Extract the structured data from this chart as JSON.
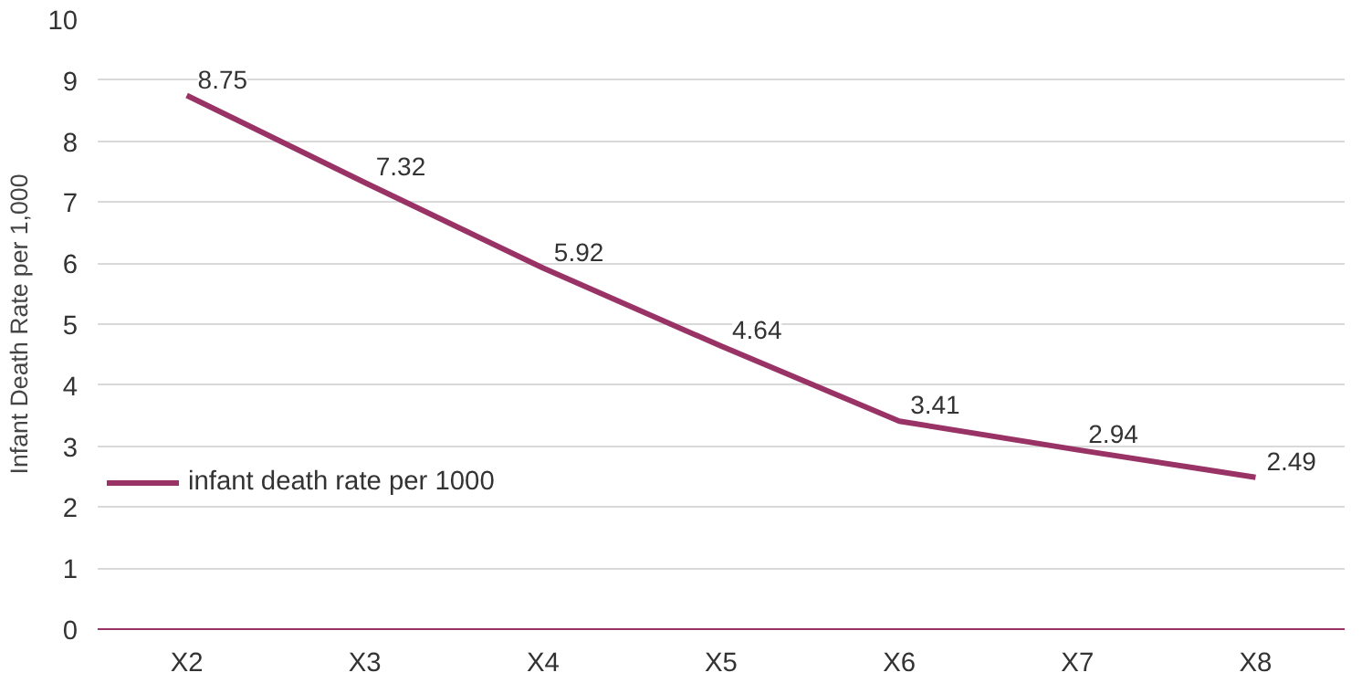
{
  "chart_data": {
    "type": "line",
    "ylabel": "Infant Death Rate per 1,000",
    "categories": [
      "X2",
      "X3",
      "X4",
      "X5",
      "X6",
      "X7",
      "X8"
    ],
    "series": [
      {
        "name": "infant death rate per 1000",
        "color": "#993366",
        "values": [
          8.75,
          7.32,
          5.92,
          4.64,
          3.41,
          2.94,
          2.49
        ]
      }
    ],
    "ylim": [
      0,
      10
    ],
    "yticks": [
      0,
      1,
      2,
      3,
      4,
      5,
      6,
      7,
      8,
      9,
      10
    ],
    "grid": "y",
    "legend": "bottom left",
    "data_labels": true,
    "marker": "none",
    "line_style": "solid"
  }
}
